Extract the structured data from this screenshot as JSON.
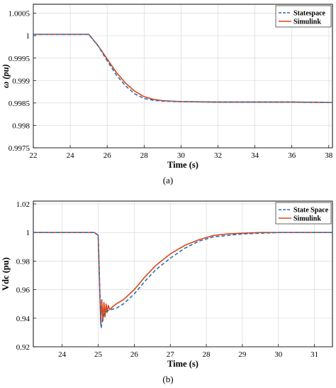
{
  "chart_data": [
    {
      "type": "line",
      "caption": "(a)",
      "xlabel": "Time (s)",
      "ylabel": "ω (pu)",
      "xlim": [
        22,
        38.2
      ],
      "ylim": [
        0.9975,
        1.0007
      ],
      "xticks": [
        22,
        24,
        26,
        28,
        30,
        32,
        34,
        36,
        38
      ],
      "yticks": [
        0.9975,
        0.998,
        0.9985,
        0.999,
        0.9995,
        1,
        1.0005
      ],
      "ytick_labels": [
        "0.9975",
        "0.998",
        "0.9985",
        "0.999",
        "0.9995",
        "1",
        "1.0005"
      ],
      "grid": true,
      "legend_position": "top-right",
      "series": [
        {
          "name": "Statespace",
          "color": "#2f6db0",
          "style": "dashed",
          "x": [
            22,
            24,
            25,
            25.5,
            26,
            26.5,
            27,
            27.5,
            28,
            28.5,
            29,
            30,
            32,
            34,
            36,
            38.2
          ],
          "y": [
            1.00003,
            1.00003,
            1.00003,
            0.99978,
            0.99944,
            0.99912,
            0.99888,
            0.9987,
            0.9986,
            0.99856,
            0.99854,
            0.99853,
            0.99852,
            0.99852,
            0.99852,
            0.99851
          ]
        },
        {
          "name": "Simulink",
          "color": "#d9471a",
          "style": "solid",
          "x": [
            22,
            24,
            25,
            25.5,
            26,
            26.5,
            27,
            27.5,
            28,
            28.5,
            29,
            30,
            32,
            34,
            36,
            38.2
          ],
          "y": [
            1.00003,
            1.00003,
            1.00003,
            0.99978,
            0.99948,
            0.99918,
            0.99894,
            0.99876,
            0.99864,
            0.99858,
            0.99855,
            0.99853,
            0.99852,
            0.99852,
            0.99852,
            0.99851
          ]
        }
      ]
    },
    {
      "type": "line",
      "caption": "(b)",
      "xlabel": "Time (s)",
      "ylabel": "Vdc (pu)",
      "xlim": [
        23.2,
        31.5
      ],
      "ylim": [
        0.92,
        1.022
      ],
      "xticks": [
        24,
        25,
        26,
        27,
        28,
        29,
        30,
        31
      ],
      "yticks": [
        0.92,
        0.94,
        0.96,
        0.98,
        1,
        1.02
      ],
      "ytick_labels": [
        "0.92",
        "0.94",
        "0.96",
        "0.98",
        "1",
        "1.02"
      ],
      "grid": true,
      "legend_position": "top-right",
      "series": [
        {
          "name": "State Space",
          "color": "#2f6db0",
          "style": "dashed",
          "x": [
            23.2,
            24.9,
            25.0,
            25.04,
            25.08,
            25.12,
            25.18,
            25.25,
            25.35,
            25.5,
            25.7,
            26.0,
            26.3,
            26.6,
            27.0,
            27.4,
            27.8,
            28.2,
            28.6,
            29.0,
            29.5,
            30.0,
            31.5
          ],
          "y": [
            1.0,
            1.0,
            0.998,
            0.965,
            0.933,
            0.939,
            0.944,
            0.945,
            0.946,
            0.947,
            0.95,
            0.957,
            0.966,
            0.974,
            0.982,
            0.989,
            0.994,
            0.997,
            0.998,
            0.999,
            0.9995,
            1.0,
            1.0
          ]
        },
        {
          "name": "Simulink",
          "color": "#d9471a",
          "style": "solid",
          "x": [
            23.2,
            24.9,
            25.0,
            25.04,
            25.07,
            25.1,
            25.13,
            25.16,
            25.19,
            25.22,
            25.25,
            25.28,
            25.32,
            25.4,
            25.5,
            25.7,
            26.0,
            26.3,
            26.6,
            27.0,
            27.4,
            27.8,
            28.2,
            28.6,
            29.0,
            29.5,
            30.0,
            31.5
          ],
          "y": [
            1.0,
            1.0,
            0.998,
            0.962,
            0.936,
            0.953,
            0.938,
            0.951,
            0.941,
            0.95,
            0.944,
            0.949,
            0.946,
            0.948,
            0.95,
            0.953,
            0.96,
            0.969,
            0.977,
            0.985,
            0.991,
            0.995,
            0.998,
            0.999,
            0.9995,
            1.0,
            1.0,
            1.0
          ]
        }
      ]
    }
  ]
}
